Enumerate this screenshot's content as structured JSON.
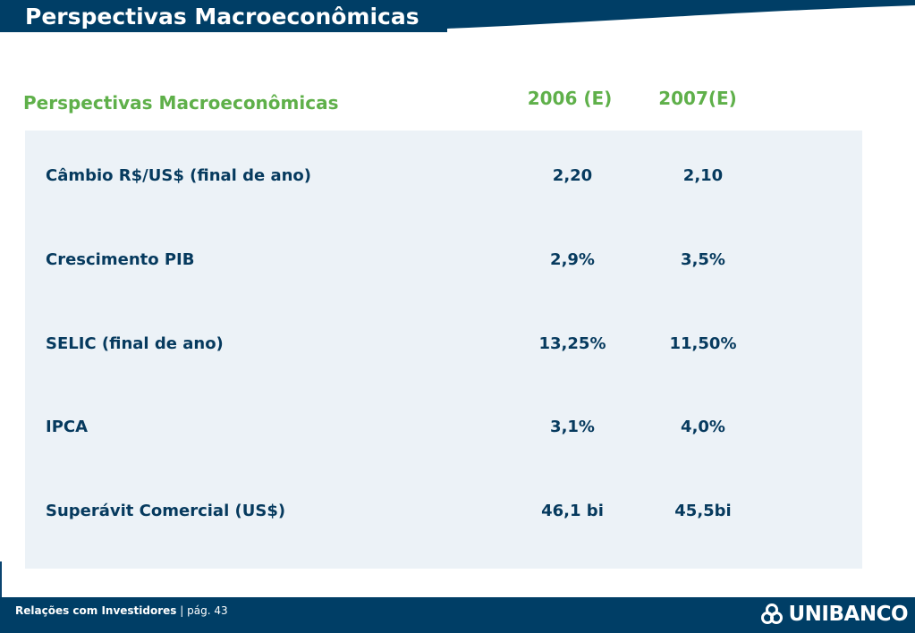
{
  "header": {
    "title": "Perspectivas Macroeconômicas"
  },
  "section": {
    "title": "Perspectivas Macroeconômicas",
    "columns": [
      "2006 (E)",
      "2007(E)"
    ]
  },
  "rows": [
    {
      "label": "Câmbio R$/US$ (final de ano)",
      "v2006": "2,20",
      "v2007": "2,10"
    },
    {
      "label": "Crescimento PIB",
      "v2006": "2,9%",
      "v2007": "3,5%"
    },
    {
      "label": "SELIC (final de ano)",
      "v2006": "13,25%",
      "v2007": "11,50%"
    },
    {
      "label": "IPCA",
      "v2006": "3,1%",
      "v2007": "4,0%"
    },
    {
      "label": "Superávit Comercial (US$)",
      "v2006": "46,1 bi",
      "v2007": "45,5bi"
    }
  ],
  "footer": {
    "label": "Relações com Investidores",
    "separator": "|",
    "page": "pág. 43",
    "logo_text": "UNIBANCO"
  },
  "colors": {
    "navy": "#003e66",
    "green": "#5fb04a",
    "panel": "#ecf2f7",
    "text": "#063a5e"
  }
}
